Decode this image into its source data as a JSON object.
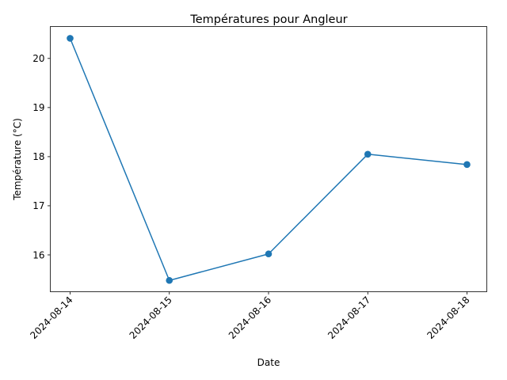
{
  "chart_data": {
    "type": "line",
    "title": "Températures pour Angleur",
    "xlabel": "Date",
    "ylabel": "Température (°C)",
    "x": [
      "2024-08-14",
      "2024-08-15",
      "2024-08-16",
      "2024-08-17",
      "2024-08-18"
    ],
    "series": [
      {
        "values": [
          20.41,
          15.48,
          16.02,
          18.05,
          17.84
        ],
        "color": "#1f77b4",
        "marker": "circle"
      }
    ],
    "ylim": [
      15.25,
      20.65
    ],
    "yticks": [
      16,
      17,
      18,
      19,
      20
    ],
    "xtick_rotation": 45,
    "grid": false,
    "legend": false
  }
}
